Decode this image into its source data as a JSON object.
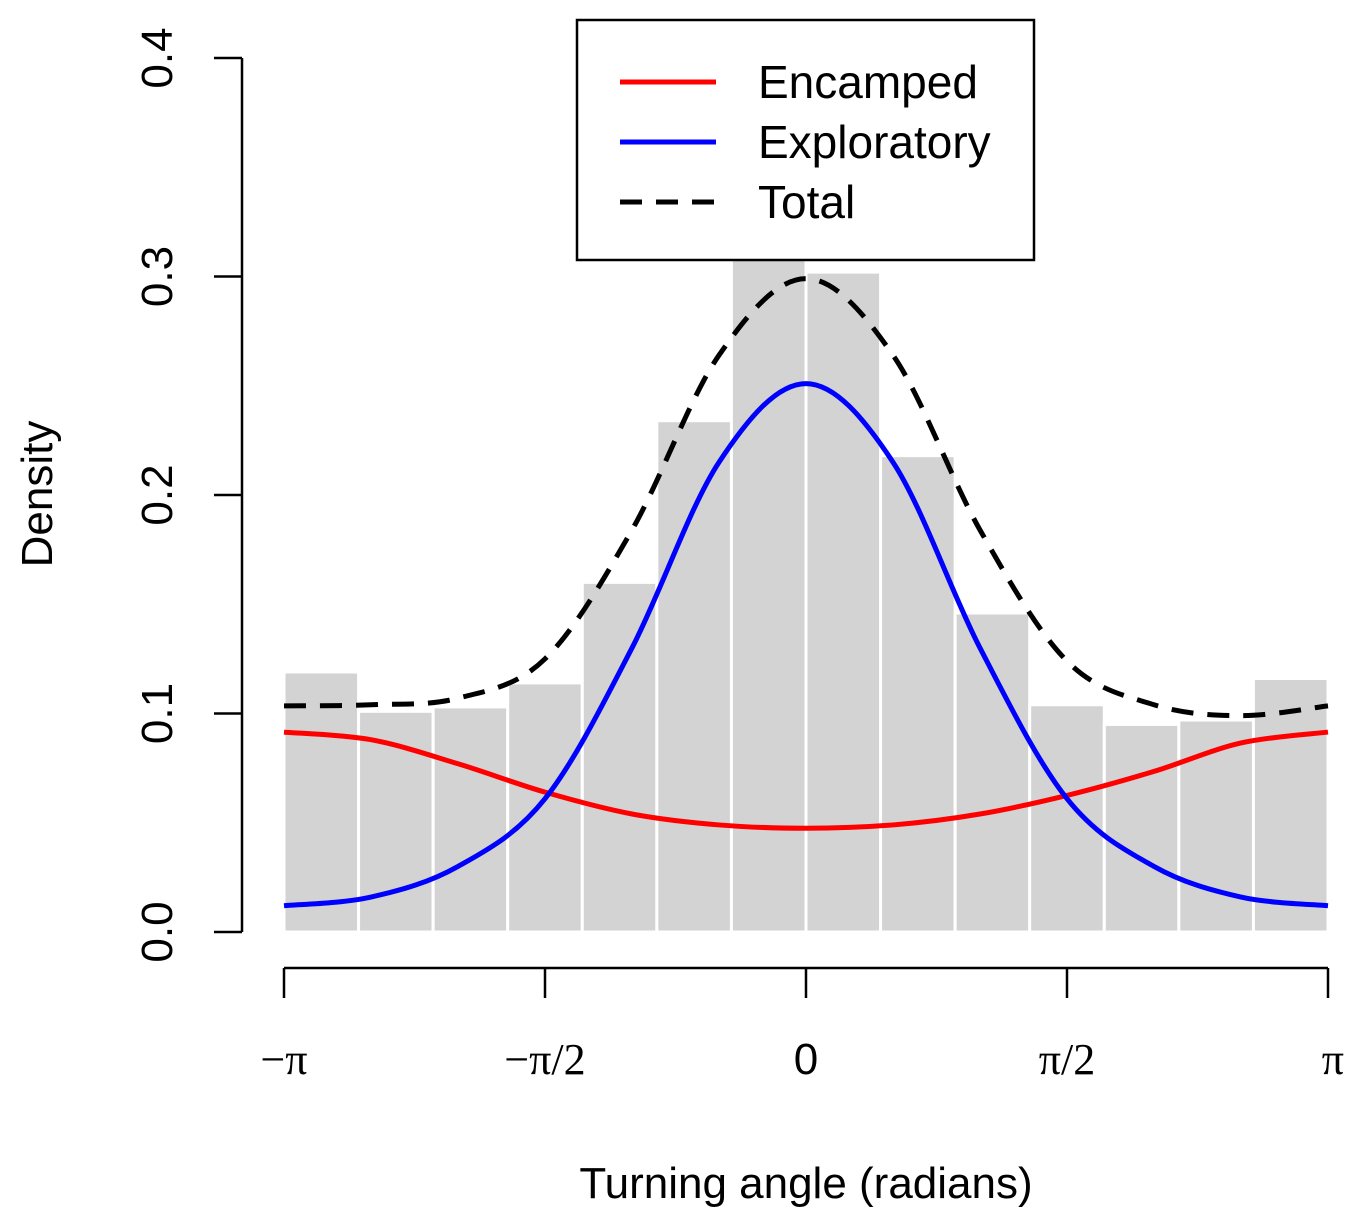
{
  "chart_data": {
    "type": "bar",
    "xlabel": "Turning angle (radians)",
    "ylabel": "Density",
    "xlim": [
      -3.14159265,
      3.14159265
    ],
    "ylim": [
      0,
      0.4
    ],
    "x_ticks": [
      {
        "value": -3.14159265,
        "label": "−π"
      },
      {
        "value": -1.5707963,
        "label": "−π/2"
      },
      {
        "value": 0,
        "label": "0"
      },
      {
        "value": 1.5707963,
        "label": "π/2"
      },
      {
        "value": 3.14159265,
        "label": "π"
      }
    ],
    "y_ticks": [
      {
        "value": 0.0,
        "label": "0.0"
      },
      {
        "value": 0.1,
        "label": "0.1"
      },
      {
        "value": 0.2,
        "label": "0.2"
      },
      {
        "value": 0.3,
        "label": "0.3"
      },
      {
        "value": 0.4,
        "label": "0.4"
      }
    ],
    "histogram": {
      "bin_count": 14,
      "values": [
        0.119,
        0.101,
        0.103,
        0.114,
        0.16,
        0.234,
        0.31,
        0.302,
        0.218,
        0.146,
        0.104,
        0.095,
        0.097,
        0.116
      ],
      "color": "#d3d3d3"
    },
    "series": [
      {
        "name": "Encamped",
        "color": "#ff0000",
        "style": "solid",
        "x": [
          -3.1416,
          -2.618,
          -2.0944,
          -1.5708,
          -1.0472,
          -0.5236,
          0,
          0.5236,
          1.0472,
          1.5708,
          2.0944,
          2.618,
          3.1416
        ],
        "y": [
          0.0915,
          0.088,
          0.077,
          0.064,
          0.054,
          0.049,
          0.0475,
          0.049,
          0.054,
          0.0625,
          0.0735,
          0.0865,
          0.0915
        ]
      },
      {
        "name": "Exploratory",
        "color": "#0000ff",
        "style": "solid",
        "x": [
          -3.1416,
          -2.618,
          -2.0944,
          -1.5708,
          -1.0472,
          -0.5236,
          0,
          0.5236,
          1.0472,
          1.5708,
          2.0944,
          2.618,
          3.1416
        ],
        "y": [
          0.012,
          0.016,
          0.03,
          0.061,
          0.13,
          0.215,
          0.251,
          0.215,
          0.13,
          0.061,
          0.03,
          0.016,
          0.012
        ]
      },
      {
        "name": "Total",
        "color": "#000000",
        "style": "dashed",
        "x": [
          -3.1416,
          -2.618,
          -2.0944,
          -1.5708,
          -1.0472,
          -0.5236,
          0,
          0.5236,
          1.0472,
          1.5708,
          2.0944,
          2.618,
          3.1416
        ],
        "y": [
          0.1035,
          0.104,
          0.107,
          0.125,
          0.184,
          0.264,
          0.299,
          0.264,
          0.184,
          0.124,
          0.104,
          0.099,
          0.1035
        ]
      }
    ],
    "legend": {
      "position": "top-center",
      "entries": [
        "Encamped",
        "Exploratory",
        "Total"
      ]
    },
    "grid": false
  }
}
